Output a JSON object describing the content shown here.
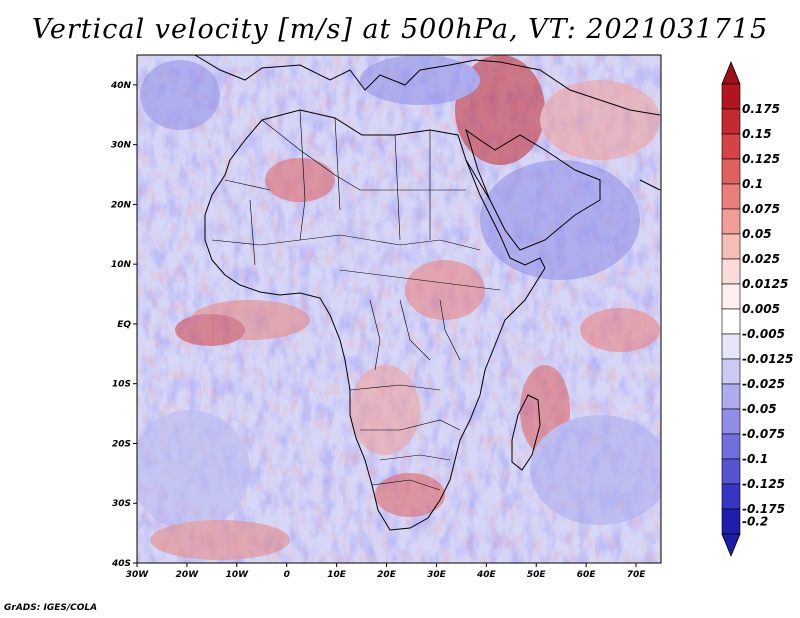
{
  "title": "Vertical velocity [m/s] at 500hPa, VT: 2021031715",
  "credit": "GrADS: IGES/COLA",
  "map": {
    "variable": "Vertical velocity",
    "units": "m/s",
    "level": "500hPa",
    "valid_time": "2021031715",
    "lon_range": [
      -30,
      75
    ],
    "lat_range": [
      -40,
      45
    ],
    "lon_ticks": [
      {
        "value": -30,
        "label": "30W"
      },
      {
        "value": -20,
        "label": "20W"
      },
      {
        "value": -10,
        "label": "10W"
      },
      {
        "value": 0,
        "label": "0"
      },
      {
        "value": 10,
        "label": "10E"
      },
      {
        "value": 20,
        "label": "20E"
      },
      {
        "value": 30,
        "label": "30E"
      },
      {
        "value": 40,
        "label": "40E"
      },
      {
        "value": 50,
        "label": "50E"
      },
      {
        "value": 60,
        "label": "60E"
      },
      {
        "value": 70,
        "label": "70E"
      }
    ],
    "lat_ticks": [
      {
        "value": 40,
        "label": "40N"
      },
      {
        "value": 30,
        "label": "30N"
      },
      {
        "value": 20,
        "label": "20N"
      },
      {
        "value": 10,
        "label": "10N"
      },
      {
        "value": 0,
        "label": "EQ"
      },
      {
        "value": -10,
        "label": "10S"
      },
      {
        "value": -20,
        "label": "20S"
      },
      {
        "value": -30,
        "label": "30S"
      },
      {
        "value": -40,
        "label": "40S"
      }
    ]
  },
  "colorbar": {
    "levels": [
      {
        "label": "0.175",
        "color": "#b4141e"
      },
      {
        "label": "0.15",
        "color": "#c42a30"
      },
      {
        "label": "0.125",
        "color": "#d44446"
      },
      {
        "label": "0.1",
        "color": "#e0605e"
      },
      {
        "label": "0.075",
        "color": "#ea7e7a"
      },
      {
        "label": "0.05",
        "color": "#f29e98"
      },
      {
        "label": "0.025",
        "color": "#f7beb8"
      },
      {
        "label": "0.0125",
        "color": "#fbdcd8"
      },
      {
        "label": "0.005",
        "color": "#fdf0ee"
      },
      {
        "label": "-0.005",
        "color": "#ffffff"
      },
      {
        "label": "-0.0125",
        "color": "#e6e6fb"
      },
      {
        "label": "-0.025",
        "color": "#cacaf5"
      },
      {
        "label": "-0.05",
        "color": "#acacee"
      },
      {
        "label": "-0.075",
        "color": "#8e8ee6"
      },
      {
        "label": "-0.1",
        "color": "#7070dc"
      },
      {
        "label": "-0.125",
        "color": "#5454d0"
      },
      {
        "label": "-0.175",
        "color": "#3636c2"
      },
      {
        "label": "-0.2",
        "color": "#1e1eae"
      }
    ],
    "top_arrow_color": "#9e0f19",
    "bottom_arrow_color": "#1c1ca4"
  },
  "colors": {
    "background": "#ffffff",
    "coast": "#000000",
    "downdraft_blue": "#8f8fe8",
    "updraft_red": "#e0605e"
  }
}
